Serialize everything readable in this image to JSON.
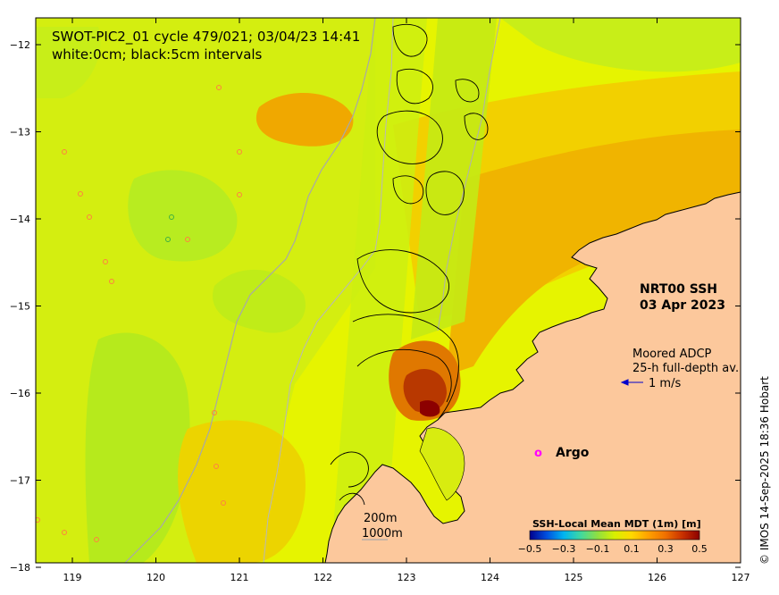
{
  "title_line1": "SWOT-PIC2_01 cycle 479/021; 03/04/23 14:41",
  "title_line2": "white:0cm; black:5cm intervals",
  "product_line1": "NRT00 SSH",
  "product_line2": "03 Apr 2023",
  "adcp_line1": "Moored ADCP",
  "adcp_line2": "25-h full-depth av.",
  "adcp_scale_label": "1 m/s",
  "argo_marker": "o",
  "argo_label": "Argo",
  "isobath_200": "200m",
  "isobath_1000": "1000m",
  "colorbar": {
    "title": "SSH-Local Mean MDT (1m) [m]",
    "ticks": [
      "−0.5",
      "−0.3",
      "−0.1",
      "0.1",
      "0.3",
      "0.5"
    ],
    "colors": [
      "#00008c",
      "#0050e0",
      "#00b4f0",
      "#40d8a0",
      "#90e040",
      "#d8f000",
      "#ffd800",
      "#ffa000",
      "#f07000",
      "#c83000",
      "#8c0000"
    ]
  },
  "credit": "© IMOS 14-Sep-2025 18:36 Hobart",
  "axes": {
    "x_ticks": [
      "119",
      "120",
      "121",
      "122",
      "123",
      "124",
      "125",
      "126",
      "127"
    ],
    "y_ticks": [
      "−12",
      "−13",
      "−14",
      "−15",
      "−16",
      "−17",
      "−18"
    ]
  },
  "colors": {
    "land": "#fcc89c",
    "ocean_base": "#d8f000",
    "ocean_warm": "#f0c800",
    "ocean_hot": "#f0a000",
    "ocean_cool": "#b4f000",
    "adcp_arrow": "#0000cc",
    "argo": "#ff00ff"
  }
}
